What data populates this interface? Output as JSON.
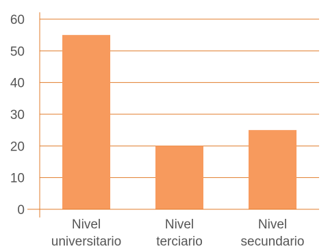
{
  "chart_data": {
    "type": "bar",
    "categories": [
      [
        "Nivel",
        "universitario"
      ],
      [
        "Nivel",
        "terciario"
      ],
      [
        "Nivel",
        "secundario"
      ]
    ],
    "values": [
      55,
      20,
      25
    ],
    "ylim": [
      0,
      60
    ],
    "yticks": [
      0,
      10,
      20,
      30,
      40,
      50,
      60
    ],
    "grid": true,
    "colors": {
      "bar": "#f79a5d",
      "grid": "#e07b2a",
      "text": "#555555"
    }
  }
}
